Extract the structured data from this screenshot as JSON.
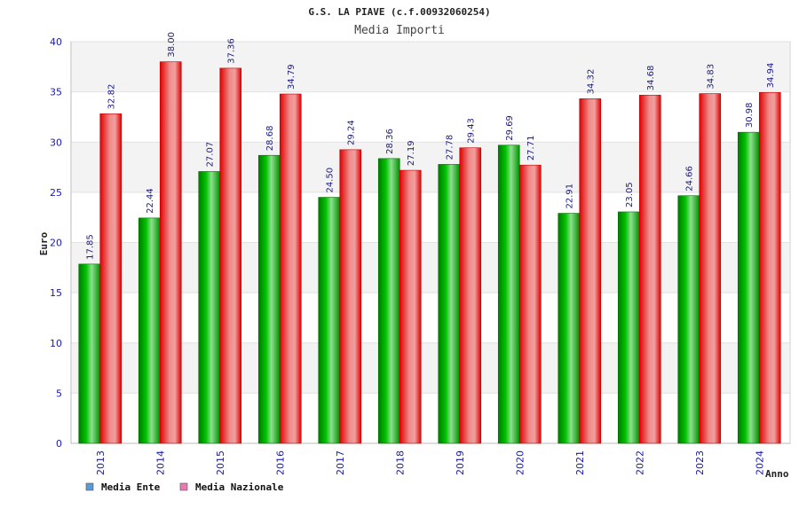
{
  "chart_data": {
    "type": "bar",
    "title": "G.S. LA PIAVE (c.f.00932060254)",
    "subtitle": "Media Importi",
    "xlabel": "Anno",
    "ylabel": "Euro",
    "ylim": [
      0,
      40
    ],
    "yticks": [
      0,
      5,
      10,
      15,
      20,
      25,
      30,
      35,
      40
    ],
    "categories": [
      "2013",
      "2014",
      "2015",
      "2016",
      "2017",
      "2018",
      "2019",
      "2020",
      "2021",
      "2022",
      "2023",
      "2024"
    ],
    "series": [
      {
        "name": "Media Ente",
        "color": "#00a000",
        "legend_color": "#5b9bd5",
        "values": [
          17.85,
          22.44,
          27.07,
          28.68,
          24.5,
          28.36,
          27.78,
          29.69,
          22.91,
          23.05,
          24.66,
          30.98
        ],
        "labels": [
          "17.85",
          "22.44",
          "27.07",
          "28.68",
          "24.50",
          "28.36",
          "27.78",
          "29.69",
          "22.91",
          "23.05",
          "24.66",
          "30.98"
        ]
      },
      {
        "name": "Media Nazionale",
        "color": "#e00000",
        "legend_color": "#e87ab0",
        "values": [
          32.82,
          38.0,
          37.36,
          34.79,
          29.24,
          27.19,
          29.43,
          27.71,
          34.32,
          34.68,
          34.83,
          34.94
        ],
        "labels": [
          "32.82",
          "38.00",
          "37.36",
          "34.79",
          "29.24",
          "27.19",
          "29.43",
          "27.71",
          "34.32",
          "34.68",
          "34.83",
          "34.94"
        ]
      }
    ],
    "grid": true,
    "legend_position": "bottom-left"
  }
}
